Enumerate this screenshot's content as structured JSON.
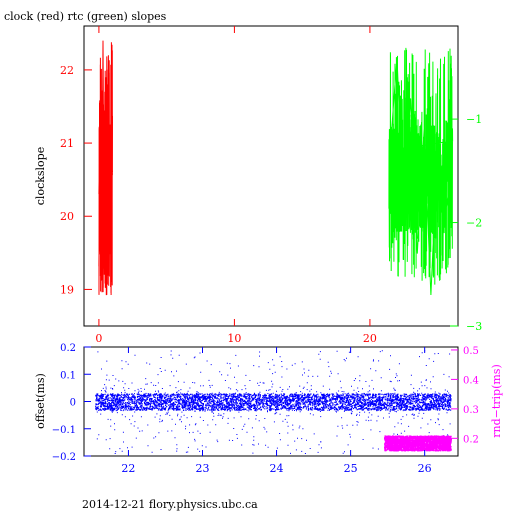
{
  "title": "clock (red) rtc (green) slopes",
  "footer": "2014-12-21 flory.physics.ubc.ca",
  "colors": {
    "clock": "#ff0000",
    "rtc": "#00ff00",
    "offset": "#0000ff",
    "rndtrip": "#ff00ff",
    "axis": "#000000"
  },
  "chart_data": [
    {
      "type": "line",
      "title": "clock (red) rtc (green) slopes",
      "xlim": [
        -1.1,
        26.5
      ],
      "x_ticks": [
        0,
        10,
        20
      ],
      "x_tick_labels": [
        "0",
        "10",
        "20"
      ],
      "grid": false,
      "left_axis": {
        "label": "clockslope",
        "ylim": [
          18.5,
          22.6
        ],
        "ticks": [
          19,
          20,
          21,
          22
        ],
        "tick_labels": [
          "19",
          "20",
          "21",
          "22"
        ]
      },
      "right_axis": {
        "label": "",
        "ylim": [
          -3,
          -0.1
        ],
        "ticks": [
          -1,
          -2,
          -3
        ],
        "tick_labels": [
          "−1",
          "−2",
          "−3"
        ]
      },
      "series": [
        {
          "axis": "left",
          "color": "#ff0000",
          "x": [
            0.0,
            0.1,
            0.2,
            0.3,
            0.4,
            0.5,
            0.6,
            0.7,
            0.8,
            0.9,
            1.0
          ],
          "y": [
            20.3,
            21.6,
            19.5,
            22.4,
            19.2,
            21.9,
            19.8,
            22.2,
            20.1,
            21.1,
            20.6
          ],
          "band": {
            "x0": 0.0,
            "x1": 1.0,
            "lo": 19.4,
            "hi": 21.7,
            "extremes": [
              18.9,
              22.4
            ]
          }
        },
        {
          "axis": "right",
          "color": "#00ff00",
          "x": [
            21.5,
            22.0,
            22.5,
            23.0,
            23.5,
            24.0,
            24.5,
            25.0,
            25.5,
            26.0
          ],
          "y": [
            -1.3,
            -0.4,
            -2.0,
            -0.8,
            -2.3,
            -1.1,
            -2.7,
            -1.2,
            -2.0,
            -1.5
          ],
          "band": {
            "x0": 21.4,
            "x1": 26.1,
            "lo": -2.1,
            "hi": -1.0,
            "extremes": [
              -2.6,
              -0.3
            ]
          }
        }
      ]
    },
    {
      "type": "scatter",
      "xlim": [
        21.4,
        26.45
      ],
      "x_ticks": [
        22,
        23,
        24,
        25,
        26
      ],
      "x_tick_labels": [
        "22",
        "23",
        "24",
        "25",
        "26"
      ],
      "grid": false,
      "left_axis": {
        "label": "offset(ms)",
        "ylim": [
          -0.2,
          0.2
        ],
        "ticks": [
          0.2,
          0.1,
          0,
          -0.1,
          -0.2
        ],
        "tick_labels": [
          "0.2",
          "0.1",
          "0",
          "−0.1",
          "−0.2"
        ]
      },
      "right_axis": {
        "label": "rnd−trip(ms)",
        "ylim": [
          0.14,
          0.51
        ],
        "ticks": [
          0.5,
          0.4,
          0.3,
          0.2
        ],
        "tick_labels": [
          "0.5",
          "0.4",
          "0.3",
          "0.2"
        ]
      },
      "series": [
        {
          "axis": "left",
          "color": "#0000ff",
          "x_range": [
            21.55,
            26.35
          ],
          "band": [
            -0.03,
            0.03
          ],
          "scatter_range": [
            -0.19,
            0.19
          ]
        },
        {
          "axis": "right",
          "color": "#ff00ff",
          "x_range": [
            25.45,
            26.35
          ],
          "band": [
            0.16,
            0.21
          ]
        }
      ]
    }
  ]
}
